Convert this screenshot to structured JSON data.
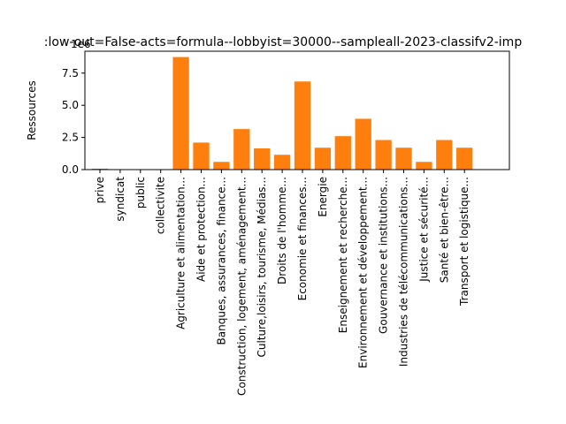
{
  "chart_data": {
    "type": "bar",
    "title": ":low-out=False-acts=formula--lobbyist=30000--sampleall-2023-classifv2-imp",
    "xlabel": "",
    "ylabel": "Ressources",
    "offset_label": "1e6",
    "ylim": [
      0,
      9200000
    ],
    "yticks": [
      0,
      2500000,
      5000000,
      7500000
    ],
    "ytick_labels": [
      "0.0",
      "2.5",
      "5.0",
      "7.5"
    ],
    "categories": [
      "prive",
      "syndicat",
      "public",
      "collectivite",
      "Agriculture et alimentation...",
      "Aide et protection...",
      "Banques, assurances, finance...",
      "Construction, logement, aménagement...",
      "Culture,loisirs, tourisme, Médias...",
      "Droits de l'homme...",
      "Economie et finances...",
      "Energie",
      "Enseignement et recherche...",
      "Environnement et développement...",
      "Gouvernance et institutions...",
      "Industries de télécommunications...",
      "Justice et sécurité...",
      "Santé et bien-être...",
      "Transport et logistique..."
    ],
    "series": [
      {
        "color": "#1f77b4",
        "values": [
          60000,
          0,
          0,
          0,
          null,
          null,
          null,
          null,
          null,
          null,
          null,
          null,
          null,
          null,
          null,
          null,
          null,
          null,
          null
        ]
      },
      {
        "color": "#ff7f0e",
        "values": [
          null,
          null,
          null,
          null,
          8750000,
          2100000,
          600000,
          3150000,
          1650000,
          1150000,
          6850000,
          1700000,
          2600000,
          3950000,
          2300000,
          1700000,
          600000,
          2300000,
          1700000
        ]
      }
    ],
    "grid": false,
    "legend": "none"
  }
}
